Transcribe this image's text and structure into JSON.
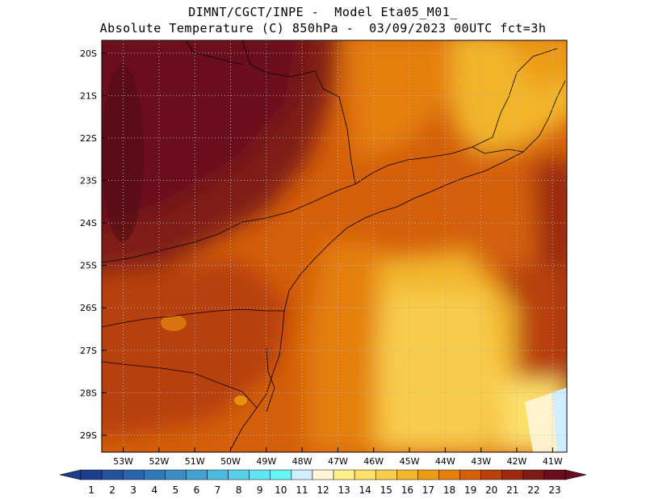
{
  "header": {
    "line1": "DIMNT/CGCT/INPE -  Model Eta05_M01_",
    "line2": "Absolute Temperature (C) 850hPa -  03/09/2023 00UTC fct=3h"
  },
  "axes": {
    "lat_labels": [
      "20S",
      "21S",
      "22S",
      "23S",
      "24S",
      "25S",
      "26S",
      "27S",
      "28S",
      "29S"
    ],
    "lon_labels": [
      "53W",
      "52W",
      "51W",
      "50W",
      "49W",
      "48W",
      "47W",
      "46W",
      "45W",
      "44W",
      "43W",
      "42W",
      "41W"
    ],
    "lat_range": [
      -29.4,
      -19.7
    ],
    "lon_range": [
      -53.6,
      -40.6
    ]
  },
  "colorbar": {
    "labels": [
      "1",
      "2",
      "3",
      "4",
      "5",
      "6",
      "7",
      "8",
      "9",
      "10",
      "11",
      "12",
      "13",
      "14",
      "15",
      "16",
      "17",
      "18",
      "19",
      "20",
      "21",
      "22",
      "23"
    ],
    "colors": [
      "#1f3d8f",
      "#25529f",
      "#2a64ad",
      "#2f78bb",
      "#3a8cc6",
      "#42a3d3",
      "#4bbbe0",
      "#55d2ea",
      "#5fe6f2",
      "#66f6f8",
      "#cfeeff",
      "#fff6d8",
      "#fff08c",
      "#fde06a",
      "#f8cc4c",
      "#f2b52c",
      "#ec9b14",
      "#e47f0c",
      "#d45f0a",
      "#b8400a",
      "#9a2a10",
      "#7f1a14",
      "#6a0c1e"
    ]
  },
  "map": {
    "field": "Absolute Temperature 850hPa",
    "units": "C",
    "gridlines": "dotted"
  }
}
